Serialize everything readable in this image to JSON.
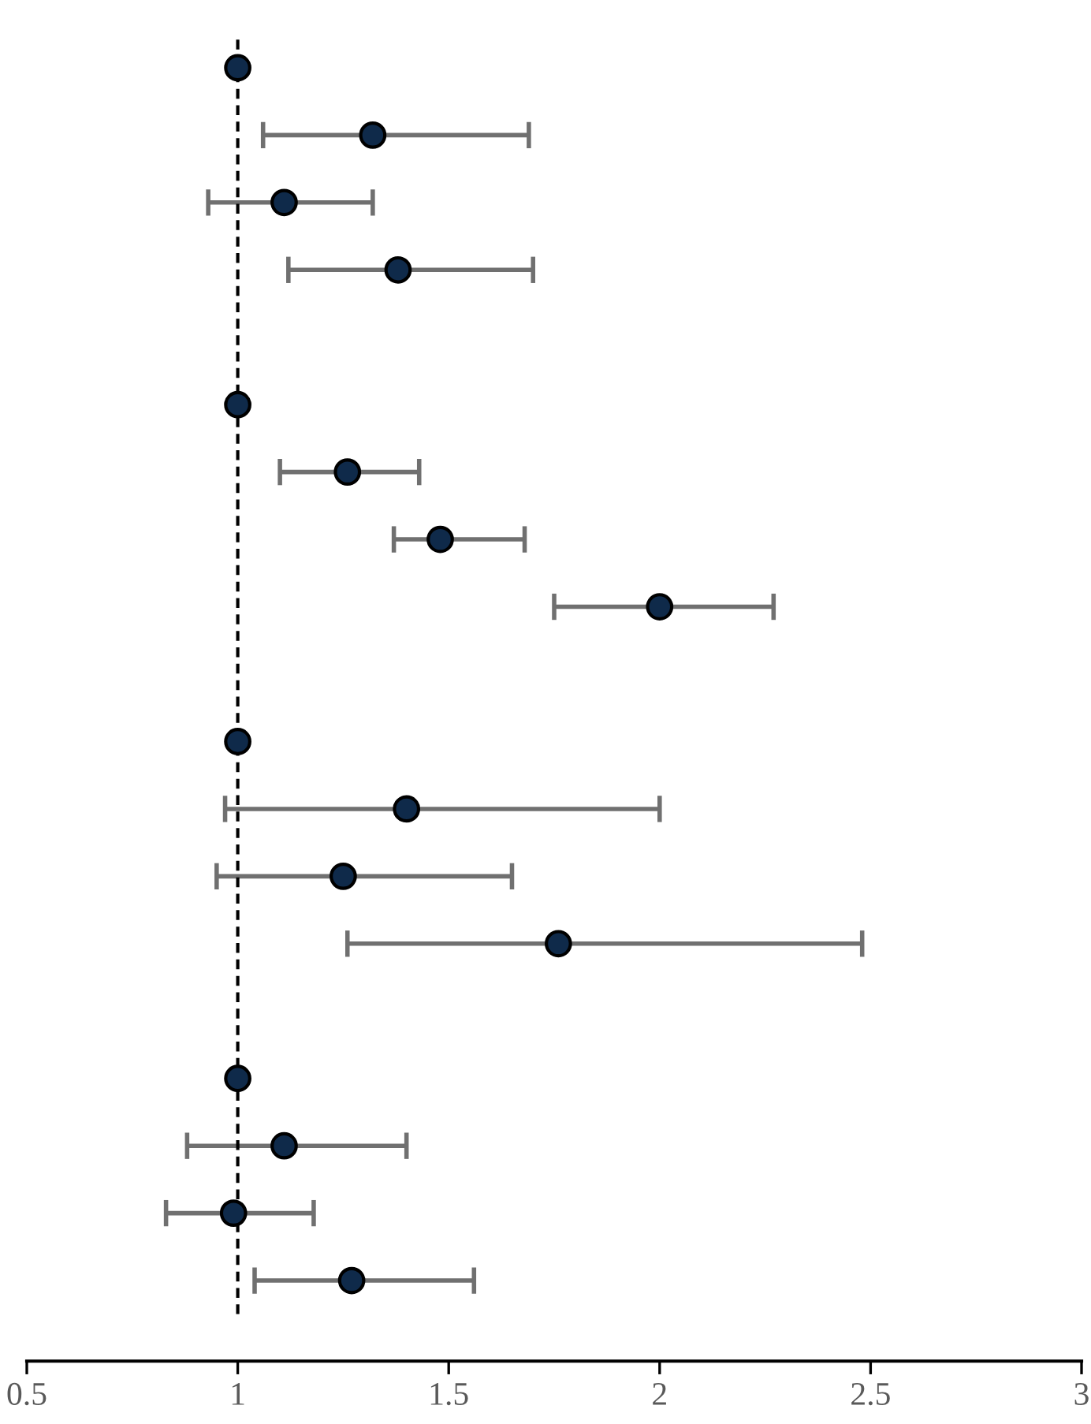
{
  "chart_data": {
    "type": "scatter",
    "orientation": "horizontal",
    "categories": [
      null,
      null,
      null,
      null,
      null,
      null,
      null,
      null,
      null,
      null,
      null,
      null,
      null,
      null,
      null,
      null,
      null,
      null,
      null
    ],
    "values": [
      1.0,
      1.32,
      1.11,
      1.38,
      null,
      1.0,
      1.26,
      1.48,
      2.0,
      null,
      1.0,
      1.4,
      1.25,
      1.76,
      null,
      1.0,
      1.11,
      0.99,
      1.27
    ],
    "errors": [
      null,
      [
        1.06,
        1.69
      ],
      [
        0.93,
        1.32
      ],
      [
        1.12,
        1.7
      ],
      null,
      null,
      [
        1.1,
        1.43
      ],
      [
        1.37,
        1.68
      ],
      [
        1.75,
        2.27
      ],
      null,
      null,
      [
        0.97,
        2.0
      ],
      [
        0.95,
        1.65
      ],
      [
        1.26,
        2.48
      ],
      null,
      null,
      [
        0.88,
        1.4
      ],
      [
        0.83,
        1.18
      ],
      [
        1.04,
        1.56
      ]
    ],
    "color": "#0f2a4a",
    "marker": "circle",
    "xlim": [
      0.5,
      3
    ],
    "xticks": [
      0.5,
      1,
      1.5,
      2,
      2.5,
      3
    ],
    "ref_lines": [
      {
        "axis": "x",
        "value": 1,
        "line_style": "dashed",
        "color": "#000000"
      }
    ],
    "tick_labels": "x",
    "grid": false,
    "legend": false
  }
}
